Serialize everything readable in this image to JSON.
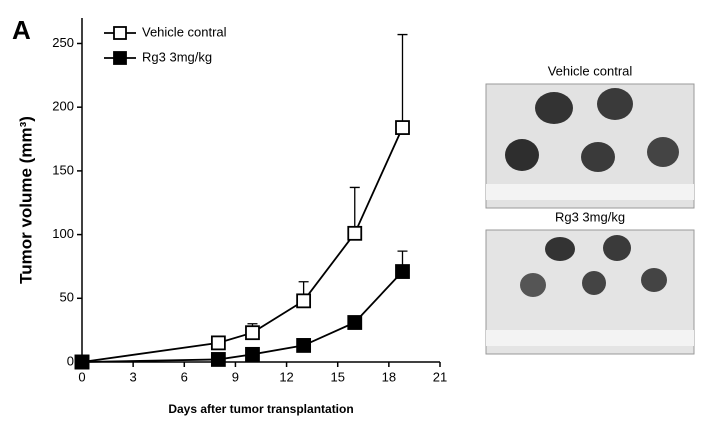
{
  "panel_label": "A",
  "chart_data": {
    "type": "line",
    "xlabel": "Days after tumor transplantation",
    "ylabel": "Tumor volume (mm³)",
    "x": [
      0,
      8,
      10,
      13,
      16,
      18.8
    ],
    "series": [
      {
        "name": "Vehicle contral",
        "color": "#000000",
        "marker": "open-square",
        "values": [
          0,
          15,
          23,
          48,
          101,
          184
        ],
        "errors": [
          0,
          2,
          7,
          15,
          36,
          73
        ]
      },
      {
        "name": "Rg3 3mg/kg",
        "color": "#000000",
        "marker": "filled-square",
        "values": [
          0,
          2,
          6,
          13,
          31,
          71
        ],
        "errors": [
          0,
          0,
          0,
          0,
          0,
          16
        ]
      }
    ],
    "xlim": [
      0,
      21
    ],
    "xticks": [
      0,
      3,
      6,
      9,
      12,
      15,
      18,
      21
    ],
    "ylim": [
      0,
      270
    ],
    "yticks": [
      0,
      50,
      100,
      150,
      200,
      250
    ],
    "legend": "upper left"
  },
  "photos": [
    {
      "title": "Vehicle contral"
    },
    {
      "title": "Rg3 3mg/kg"
    }
  ]
}
